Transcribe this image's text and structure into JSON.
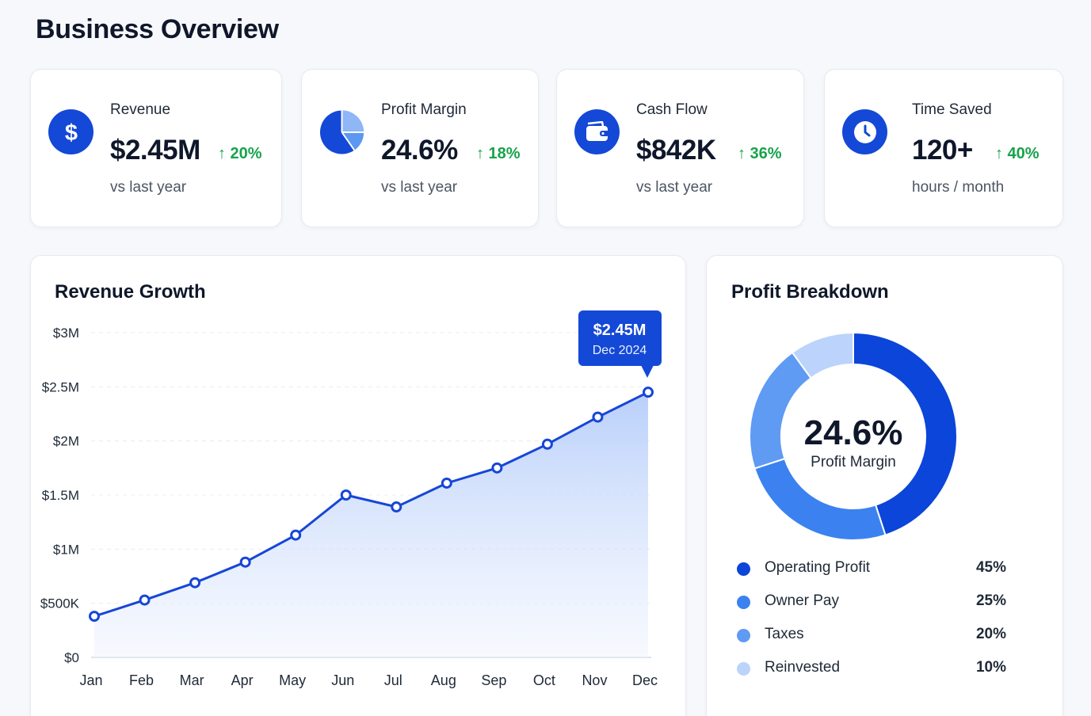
{
  "page": {
    "title": "Business Overview"
  },
  "kpis": [
    {
      "icon": "dollar-icon",
      "label": "Revenue",
      "value": "$2.45M",
      "delta": "↑ 20%",
      "sub": "vs last year"
    },
    {
      "icon": "pie-chart-icon",
      "label": "Profit Margin",
      "value": "24.6%",
      "delta": "↑ 18%",
      "sub": "vs last year"
    },
    {
      "icon": "wallet-icon",
      "label": "Cash Flow",
      "value": "$842K",
      "delta": "↑ 36%",
      "sub": "vs last year"
    },
    {
      "icon": "clock-icon",
      "label": "Time Saved",
      "value": "120+",
      "delta": "↑ 40%",
      "sub": "hours / month"
    }
  ],
  "revenue_panel": {
    "title": "Revenue Growth",
    "tooltip": {
      "value": "$2.45M",
      "date": "Dec 2024"
    }
  },
  "breakdown_panel": {
    "title": "Profit Breakdown",
    "center_value": "24.6%",
    "center_label": "Profit Margin",
    "legend": [
      {
        "name": "Operating Profit",
        "pct": "45%",
        "color": "#0b45d9"
      },
      {
        "name": "Owner Pay",
        "pct": "25%",
        "color": "#3b82f0"
      },
      {
        "name": "Taxes",
        "pct": "20%",
        "color": "#5f9af3"
      },
      {
        "name": "Reinvested",
        "pct": "10%",
        "color": "#bcd3fb"
      }
    ]
  },
  "colors": {
    "accent": "#1448d6",
    "positive": "#16a34a",
    "line": "#1746d6",
    "area": "#bcd4fb"
  },
  "chart_data": [
    {
      "type": "area",
      "title": "Revenue Growth",
      "categories": [
        "Jan",
        "Feb",
        "Mar",
        "Apr",
        "May",
        "Jun",
        "Jul",
        "Aug",
        "Sep",
        "Oct",
        "Nov",
        "Dec"
      ],
      "values": [
        380000,
        530000,
        690000,
        880000,
        1130000,
        1500000,
        1390000,
        1610000,
        1750000,
        1970000,
        2220000,
        2450000
      ],
      "yticks": [
        "$0",
        "$500K",
        "$1M",
        "$1.5M",
        "$2M",
        "$2.5M",
        "$3M"
      ],
      "ylim": [
        0,
        3000000
      ],
      "grid": true
    },
    {
      "type": "pie",
      "title": "Profit Breakdown",
      "labels": [
        "Operating Profit",
        "Owner Pay",
        "Taxes",
        "Reinvested"
      ],
      "values": [
        45,
        25,
        20,
        10
      ]
    }
  ]
}
